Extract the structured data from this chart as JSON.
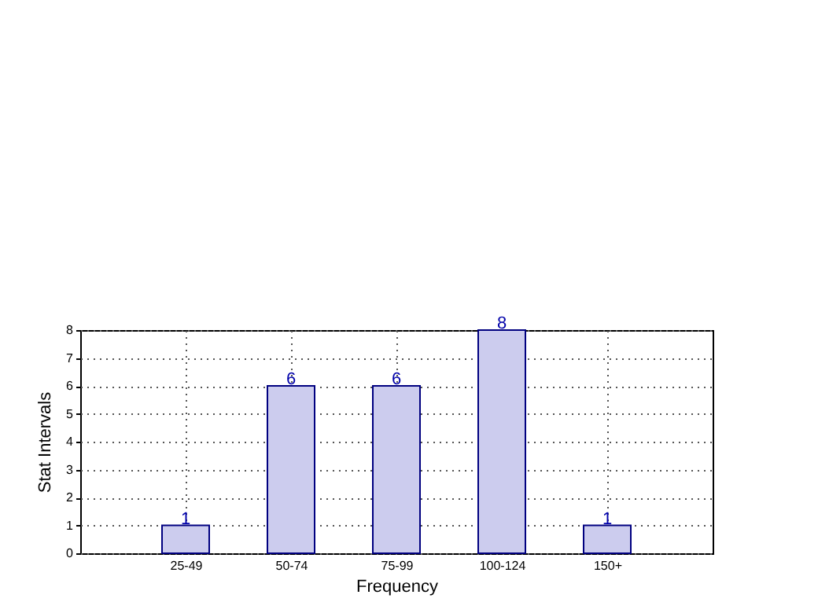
{
  "chart_data": {
    "type": "bar",
    "xlabel": "Frequency",
    "ylabel": "Stat Intervals",
    "categories": [
      "25-49",
      "50-74",
      "75-99",
      "100-124",
      "150+"
    ],
    "values": [
      1,
      6,
      6,
      8,
      1
    ],
    "color": "#ccccee",
    "ylim": [
      0,
      8
    ],
    "yticks": [
      0,
      1,
      2,
      3,
      4,
      5,
      6,
      7,
      8
    ],
    "grid": true,
    "data_labels": true
  }
}
